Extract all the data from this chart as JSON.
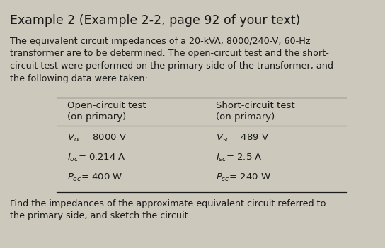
{
  "title": "Example 2 (Example 2-2, page 92 of your text)",
  "intro_text": "The equivalent circuit impedances of a 20-kVA, 8000/240-V, 60-Hz\ntransformer are to be determined. The open-circuit test and the short-\ncircuit test were performed on the primary side of the transformer, and\nthe following data were taken:",
  "col1_header": "Open-circuit test\n(on primary)",
  "col2_header": "Short-circuit test\n(on primary)",
  "col1_rows": [
    "$V_{oc}$= 8000 V",
    "$I_{oc}$= 0.214 A",
    "$P_{oc}$= 400 W"
  ],
  "col2_rows": [
    "$V_{sc}$= 489 V",
    "$I_{sc}$= 2.5 A",
    "$P_{sc}$= 240 W"
  ],
  "footer_text": "Find the impedances of the approximate equivalent circuit referred to\nthe primary side, and sketch the circuit.",
  "bg_color": "#ccc8bc",
  "text_color": "#1a1a1a",
  "title_fontsize": 12.5,
  "body_fontsize": 9.2,
  "table_fontsize": 9.5
}
